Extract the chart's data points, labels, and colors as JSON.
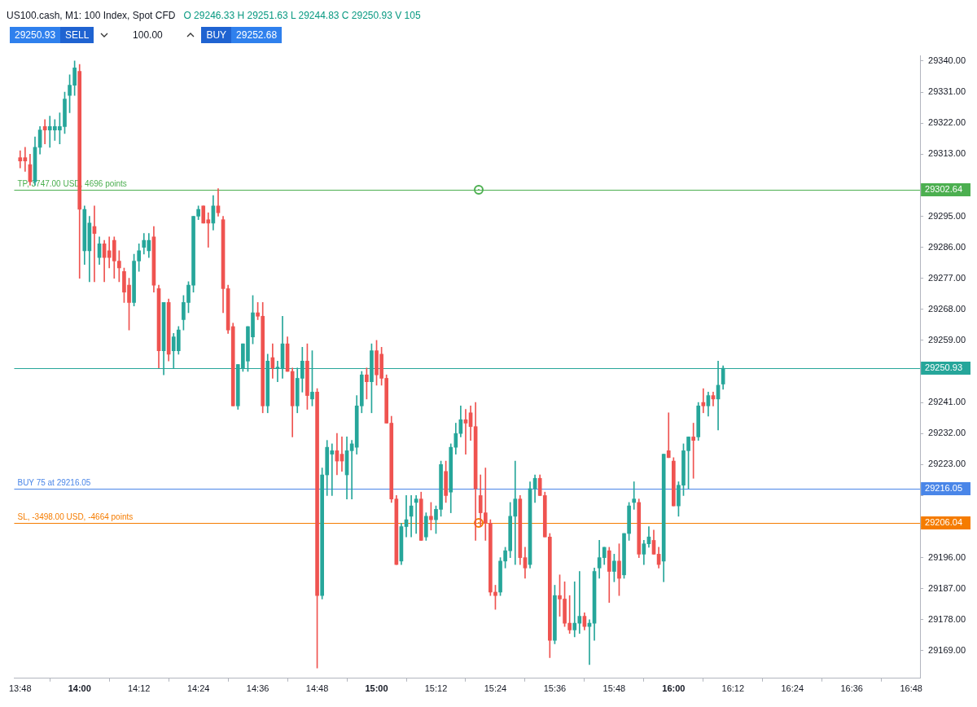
{
  "chart_data": {
    "type": "candlestick",
    "title": "US100.cash, M1: 100 Index, Spot CFD",
    "subtitle": "O 29246.33 H 29251.63 L 29244.83 C 29250.93 V 105",
    "annotations": [
      "29250.93",
      "SELL",
      "100.00",
      "BUY",
      "29252.68",
      "29302.64",
      "29250.93",
      "29216.05",
      "29206.04"
    ],
    "x": [
      13.8,
      13.8167,
      13.8333,
      13.85,
      13.8667,
      13.8833,
      13.9,
      13.9167,
      13.9333,
      13.95,
      13.9667,
      13.9833,
      14,
      14.0167,
      14.0333,
      14.05,
      14.0667,
      14.0833,
      14.1,
      14.1167,
      14.1333,
      14.15,
      14.1667,
      14.1833,
      14.2,
      14.2167,
      14.2333,
      14.25,
      14.2667,
      14.2833,
      14.3,
      14.3167,
      14.3333,
      14.35,
      14.3667,
      14.3833,
      14.4,
      14.4167,
      14.4333,
      14.45,
      14.4667,
      14.4833,
      14.5,
      14.5167,
      14.5333,
      14.55,
      14.5667,
      14.5833,
      14.6,
      14.6167,
      14.6333,
      14.65,
      14.6667,
      14.6833,
      14.7,
      14.7167,
      14.7333,
      14.75,
      14.7667,
      14.7833,
      14.8,
      14.8167,
      14.8333,
      14.85,
      14.8667,
      14.8833,
      14.9,
      14.9167,
      14.9333,
      14.95,
      14.9667,
      14.9833,
      15,
      15.0167,
      15.0333,
      15.05,
      15.0667,
      15.0833,
      15.1,
      15.1167,
      15.1333,
      15.15,
      15.1667,
      15.1833,
      15.2,
      15.2167,
      15.2333,
      15.25,
      15.2667,
      15.2833,
      15.3,
      15.3167,
      15.3333,
      15.35,
      15.3667,
      15.3833,
      15.4,
      15.4167,
      15.4333,
      15.45,
      15.4667,
      15.4833,
      15.5,
      15.5167,
      15.5333,
      15.55,
      15.5667,
      15.5833,
      15.6,
      15.6167,
      15.6333,
      15.65,
      15.6667,
      15.6833,
      15.7,
      15.7167,
      15.7333,
      15.75,
      15.7667,
      15.7833,
      15.8,
      15.8167,
      15.8333,
      15.85,
      15.8667,
      15.8833,
      15.9,
      15.9167,
      15.9333,
      15.95,
      15.9667,
      15.9833,
      16,
      16.0167,
      16.0333,
      16.05,
      16.0667,
      16.0833,
      16.1,
      16.1167,
      16.1333,
      16.15,
      16.1667
    ],
    "ohlc": [
      [
        29312,
        29314,
        29309,
        29311
      ],
      [
        29312,
        29315,
        29308,
        29311
      ],
      [
        29310,
        29313,
        29304,
        29305
      ],
      [
        29305,
        29318,
        29304,
        29315
      ],
      [
        29315,
        29321,
        29313,
        29320
      ],
      [
        29321,
        29323,
        29316,
        29320
      ],
      [
        29320,
        29324,
        29315,
        29321
      ],
      [
        29320,
        29323,
        29317,
        29321
      ],
      [
        29320,
        29325,
        29316,
        29321
      ],
      [
        29321,
        29331,
        29319,
        29329
      ],
      [
        29330,
        29336,
        29325,
        29333
      ],
      [
        29333,
        29340,
        29330,
        29338
      ],
      [
        29337,
        29339,
        29277,
        29297
      ],
      [
        29285,
        29298,
        29281,
        29297
      ],
      [
        29285,
        29295,
        29276,
        29293
      ],
      [
        29292,
        29298,
        29276,
        29290
      ],
      [
        29283,
        29289,
        29281,
        29287
      ],
      [
        29287,
        29288,
        29276,
        29283
      ],
      [
        29285,
        29289,
        29280,
        29283
      ],
      [
        29288,
        29289,
        29277,
        29282
      ],
      [
        29282,
        29285,
        29276,
        29280
      ],
      [
        29279,
        29280,
        29270,
        29273
      ],
      [
        29275,
        29277,
        29262,
        29270
      ],
      [
        29270,
        29284,
        29269,
        29282
      ],
      [
        29282,
        29287,
        29279,
        29285
      ],
      [
        29286,
        29290,
        29284,
        29288
      ],
      [
        29285,
        29290,
        29283,
        29288
      ],
      [
        29289,
        29292,
        29273,
        29275
      ],
      [
        29274,
        29275,
        29251,
        29256
      ],
      [
        29256,
        29270,
        29249,
        29270
      ],
      [
        29270,
        29271,
        29253,
        29255
      ],
      [
        29256,
        29261,
        29251,
        29260
      ],
      [
        29256,
        29263,
        29255,
        29262
      ],
      [
        29265,
        29272,
        29262,
        29270
      ],
      [
        29270,
        29276,
        29267,
        29275
      ],
      [
        29275,
        29295,
        29273,
        29295
      ],
      [
        29295,
        29298,
        29294,
        29297
      ],
      [
        29298,
        29298,
        29293,
        29293
      ],
      [
        29294,
        29296,
        29286,
        29293
      ],
      [
        29293,
        29301,
        29291,
        29298
      ],
      [
        29298,
        29303,
        29295,
        29296
      ],
      [
        29294,
        29295,
        29267,
        29274
      ],
      [
        29274,
        29275,
        29261,
        29262
      ],
      [
        29263,
        29264,
        29240,
        29240
      ],
      [
        29240,
        29252,
        29239,
        29252
      ],
      [
        29251,
        29258,
        29250,
        29258
      ],
      [
        29253,
        29263,
        29250,
        29263
      ],
      [
        29260,
        29272,
        29258,
        29267
      ],
      [
        29267,
        29270,
        29265,
        29266
      ],
      [
        29266,
        29270,
        29238,
        29240
      ],
      [
        29240,
        29255,
        29238,
        29253
      ],
      [
        29254,
        29258,
        29248,
        29251
      ],
      [
        29251,
        29253,
        29247,
        29251
      ],
      [
        29251,
        29266,
        29248,
        29258
      ],
      [
        29258,
        29260,
        29250,
        29250
      ],
      [
        29250,
        29251,
        29231,
        29240
      ],
      [
        29240,
        29251,
        29238,
        29248
      ],
      [
        29248,
        29257,
        29244,
        29253
      ],
      [
        29253,
        29258,
        29239,
        29243
      ],
      [
        29242,
        29256,
        29240,
        29244
      ],
      [
        29244,
        29245,
        29164,
        29185
      ],
      [
        29185,
        29222,
        29184,
        29220
      ],
      [
        29220,
        29230,
        29214,
        29228
      ],
      [
        29226,
        29229,
        29214,
        29227
      ],
      [
        29227,
        29232,
        29220,
        29224
      ],
      [
        29226,
        29231,
        29221,
        29224
      ],
      [
        29220,
        29231,
        29213,
        29227
      ],
      [
        29227,
        29230,
        29213,
        29229
      ],
      [
        29228,
        29243,
        29226,
        29240
      ],
      [
        29240,
        29250,
        29238,
        29249
      ],
      [
        29249,
        29251,
        29242,
        29247
      ],
      [
        29247,
        29258,
        29238,
        29256
      ],
      [
        29256,
        29259,
        29246,
        29249
      ],
      [
        29255,
        29257,
        29246,
        29248
      ],
      [
        29248,
        29249,
        29235,
        29235
      ],
      [
        29235,
        29237,
        29212,
        29213
      ],
      [
        29213,
        29214,
        29194,
        29194
      ],
      [
        29195,
        29206,
        29194,
        29205
      ],
      [
        29205,
        29214,
        29202,
        29207
      ],
      [
        29208,
        29214,
        29202,
        29211
      ],
      [
        29212,
        29214,
        29203,
        29213
      ],
      [
        29213,
        29215,
        29201,
        29201
      ],
      [
        29202,
        29209,
        29201,
        29208
      ],
      [
        29208,
        29212,
        29204,
        29207
      ],
      [
        29207,
        29211,
        29203,
        29210
      ],
      [
        29210,
        29224,
        29208,
        29223
      ],
      [
        29221,
        29224,
        29212,
        29214
      ],
      [
        29215,
        29229,
        29209,
        29228
      ],
      [
        29228,
        29235,
        29226,
        29232
      ],
      [
        29232,
        29240,
        29231,
        29236
      ],
      [
        29236,
        29239,
        29226,
        29235
      ],
      [
        29238,
        29240,
        29230,
        29234
      ],
      [
        29234,
        29241,
        29201,
        29216
      ],
      [
        29214,
        29220,
        29205,
        29209
      ],
      [
        29209,
        29222,
        29201,
        29206
      ],
      [
        29206,
        29207,
        29185,
        29186
      ],
      [
        29186,
        29188,
        29181,
        29185
      ],
      [
        29186,
        29196,
        29185,
        29195
      ],
      [
        29195,
        29199,
        29193,
        29198
      ],
      [
        29198,
        29212,
        29196,
        29208
      ],
      [
        29208,
        29224,
        29194,
        29213
      ],
      [
        29213,
        29214,
        29194,
        29196
      ],
      [
        29196,
        29199,
        29190,
        29193
      ],
      [
        29194,
        29218,
        29193,
        29216
      ],
      [
        29216,
        29220,
        29212,
        29219
      ],
      [
        29219,
        29220,
        29214,
        29214
      ],
      [
        29214,
        29215,
        29202,
        29202
      ],
      [
        29202,
        29203,
        29167,
        29172
      ],
      [
        29172,
        29188,
        29171,
        29185
      ],
      [
        29185,
        29191,
        29179,
        29184
      ],
      [
        29184,
        29189,
        29176,
        29177
      ],
      [
        29177,
        29185,
        29174,
        29175
      ],
      [
        29175,
        29189,
        29173,
        29177
      ],
      [
        29177,
        29192,
        29174,
        29179
      ],
      [
        29179,
        29180,
        29175,
        29176
      ],
      [
        29176,
        29178,
        29165,
        29177
      ],
      [
        29177,
        29193,
        29172,
        29192
      ],
      [
        29193,
        29201,
        29190,
        29196
      ],
      [
        29196,
        29199,
        29194,
        29199
      ],
      [
        29198,
        29199,
        29183,
        29192
      ],
      [
        29192,
        29197,
        29189,
        29195
      ],
      [
        29195,
        29200,
        29185,
        29190
      ],
      [
        29191,
        29203,
        29190,
        29203
      ],
      [
        29203,
        29212,
        29201,
        29211
      ],
      [
        29212,
        29218,
        29210,
        29213
      ],
      [
        29212,
        29213,
        29196,
        29197
      ],
      [
        29197,
        29201,
        29194,
        29200
      ],
      [
        29200,
        29205,
        29199,
        29202
      ],
      [
        29201,
        29204,
        29197,
        29197
      ],
      [
        29197,
        29199,
        29193,
        29194
      ],
      [
        29195,
        29226,
        29189,
        29226
      ],
      [
        29227,
        29238,
        29225,
        29225
      ],
      [
        29224,
        29225,
        29211,
        29211
      ],
      [
        29211,
        29218,
        29208,
        29217
      ],
      [
        29217,
        29229,
        29214,
        29227
      ],
      [
        29227,
        29231,
        29216,
        29231
      ],
      [
        29231,
        29235,
        29219,
        29230
      ],
      [
        29231,
        29241,
        29230,
        29240
      ],
      [
        29241,
        29245,
        29238,
        29240
      ],
      [
        29240,
        29244,
        29237,
        29243
      ],
      [
        29243,
        29244,
        29240,
        29242
      ],
      [
        29242,
        29253,
        29233,
        29246
      ],
      [
        29246.33,
        29251.63,
        29244.83,
        29250.93
      ]
    ],
    "xlim": [
      13.78,
      16.83
    ],
    "xticks": [
      {
        "value": 13.8,
        "label": "13:48"
      },
      {
        "value": 14,
        "label": "14:00"
      },
      {
        "value": 14.2,
        "label": "14:12"
      },
      {
        "value": 14.4,
        "label": "14:24"
      },
      {
        "value": 14.6,
        "label": "14:36"
      },
      {
        "value": 14.8,
        "label": "14:48"
      },
      {
        "value": 15,
        "label": "15:00"
      },
      {
        "value": 15.2,
        "label": "15:12"
      },
      {
        "value": 15.4,
        "label": "15:24"
      },
      {
        "value": 15.6,
        "label": "15:36"
      },
      {
        "value": 15.8,
        "label": "15:48"
      },
      {
        "value": 16,
        "label": "16:00"
      },
      {
        "value": 16.2,
        "label": "16:12"
      },
      {
        "value": 16.4,
        "label": "16:24"
      },
      {
        "value": 16.6,
        "label": "16:36"
      },
      {
        "value": 16.8,
        "label": "16:48"
      }
    ],
    "ylim": [
      29161,
      29341.5
    ],
    "yticks": [
      {
        "value": 29169,
        "label": "29169.00"
      },
      {
        "value": 29178,
        "label": "29178.00"
      },
      {
        "value": 29187,
        "label": "29187.00"
      },
      {
        "value": 29196,
        "label": "29196.00"
      },
      {
        "value": 29205,
        "label": null
      },
      {
        "value": 29214,
        "label": null
      },
      {
        "value": 29223,
        "label": "29223.00"
      },
      {
        "value": 29232,
        "label": "29232.00"
      },
      {
        "value": 29241,
        "label": "29241.00"
      },
      {
        "value": 29250,
        "label": null
      },
      {
        "value": 29259,
        "label": "29259.00"
      },
      {
        "value": 29268,
        "label": "29268.00"
      },
      {
        "value": 29277,
        "label": "29277.00"
      },
      {
        "value": 29286,
        "label": "29286.00"
      },
      {
        "value": 29295,
        "label": "29295.00"
      },
      {
        "value": 29304,
        "label": null
      },
      {
        "value": 29313,
        "label": "29313.00"
      },
      {
        "value": 29322,
        "label": "29322.00"
      },
      {
        "value": 29331,
        "label": "29331.00"
      },
      {
        "value": 29340,
        "label": "29340.00"
      }
    ],
    "ref_lines": [
      {
        "axis": "y",
        "value": 29302.64,
        "label": "TP, 3747.00 USD, 4696 points",
        "color": "#4caf50"
      },
      {
        "axis": "y",
        "value": 29250.93,
        "color": "#26a69a"
      },
      {
        "axis": "y",
        "value": 29216.05,
        "label": "BUY 75 at 29216.05",
        "color": "#4a86e8"
      },
      {
        "axis": "y",
        "value": 29206.04,
        "label": "SL, -3498.00 USD, -4664 points",
        "color": "#f57c00"
      }
    ]
  }
}
